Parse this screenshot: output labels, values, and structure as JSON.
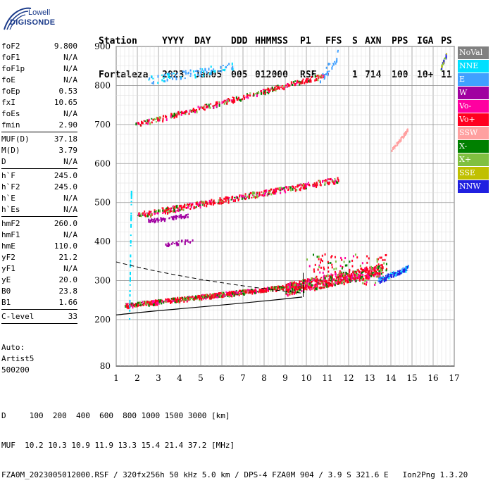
{
  "logo": {
    "line1": "Lowell",
    "line2": "DIGISONDE"
  },
  "header": {
    "row1": [
      "Station",
      "YYYY",
      "DAY",
      "DDD",
      "HHMMSS",
      "P1",
      "FFS",
      "S",
      "AXN",
      "PPS",
      "IGA",
      "PS"
    ],
    "row2": [
      "Fortaleza",
      "2023",
      "Jan05",
      "005",
      "012000",
      "RSF",
      "",
      "1",
      "714",
      "100",
      "10+",
      "11"
    ]
  },
  "params": [
    {
      "label": "foF2",
      "value": "9.800"
    },
    {
      "label": "foF1",
      "value": "N/A"
    },
    {
      "label": "foF1p",
      "value": "N/A"
    },
    {
      "label": "foE",
      "value": "N/A"
    },
    {
      "label": "foEp",
      "value": "0.53"
    },
    {
      "label": "fxI",
      "value": "10.65"
    },
    {
      "label": "foEs",
      "value": "N/A"
    },
    {
      "label": "fmin",
      "value": "2.90"
    },
    {
      "sep": true
    },
    {
      "label": "MUF(D)",
      "value": "37.18"
    },
    {
      "label": "M(D)",
      "value": "3.79"
    },
    {
      "label": "D",
      "value": "N/A"
    },
    {
      "sep": true
    },
    {
      "label": "h`F",
      "value": "245.0"
    },
    {
      "label": "h`F2",
      "value": "245.0"
    },
    {
      "label": "h`E",
      "value": "N/A"
    },
    {
      "label": "h`Es",
      "value": "N/A"
    },
    {
      "sep": true
    },
    {
      "label": "hmF2",
      "value": "260.0"
    },
    {
      "label": "hmF1",
      "value": "N/A"
    },
    {
      "label": "hmE",
      "value": "110.0"
    },
    {
      "label": "yF2",
      "value": "21.2"
    },
    {
      "label": "yF1",
      "value": "N/A"
    },
    {
      "label": "yE",
      "value": "20.0"
    },
    {
      "label": "B0",
      "value": "23.8"
    },
    {
      "label": "B1",
      "value": "1.66"
    },
    {
      "sep": true
    },
    {
      "label": "C-level",
      "value": "33"
    },
    {
      "sep": true
    }
  ],
  "auto": [
    "Auto:",
    "Artist5",
    "500200"
  ],
  "legend": [
    {
      "label": "NoVal",
      "color": "#808080"
    },
    {
      "label": "NNE",
      "color": "#00e0ff"
    },
    {
      "label": "E",
      "color": "#40a0ff"
    },
    {
      "label": "W",
      "color": "#a000a0"
    },
    {
      "label": "Vo-",
      "color": "#ff00a0"
    },
    {
      "label": "Vo+",
      "color": "#ff0020"
    },
    {
      "label": "SSW",
      "color": "#ffa0a0"
    },
    {
      "label": "X-",
      "color": "#008000"
    },
    {
      "label": "X+",
      "color": "#80c040"
    },
    {
      "label": "SSE",
      "color": "#c0c000"
    },
    {
      "label": "NNW",
      "color": "#2020e0"
    }
  ],
  "axes": {
    "x_ticks": [
      "1",
      "2",
      "3",
      "4",
      "5",
      "6",
      "7",
      "8",
      "9",
      "10",
      "11",
      "12",
      "13",
      "14",
      "15",
      "16",
      "17"
    ],
    "y_ticks": [
      "80",
      "200",
      "300",
      "400",
      "500",
      "600",
      "700",
      "800",
      "900"
    ]
  },
  "bottom": {
    "line1": "D     100  200  400  600  800 1000 1500 3000 [km]",
    "line2": "MUF  10.2 10.3 10.9 11.9 13.3 15.4 21.4 37.2 [MHz]",
    "line3": "FZA0M_2023005012000.RSF / 320fx256h 50 kHz 5.0 km / DPS-4 FZA0M 904 / 3.9 S 321.6 E   Ion2Png 1.3.20"
  }
}
